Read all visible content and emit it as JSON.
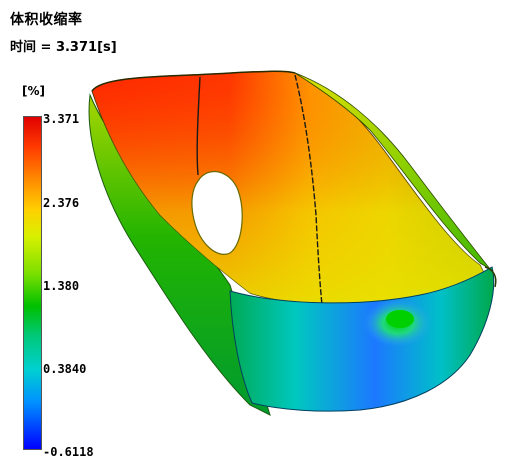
{
  "title": "体积收缩率",
  "time_label": "时间 = 3.371[s]",
  "legend": {
    "unit": "[%]",
    "ticks": [
      "3.371",
      "2.376",
      "1.380",
      "0.3840",
      "-0.6118"
    ],
    "colors": {
      "max": "#e00000",
      "upper": "#ffd000",
      "mid": "#00c000",
      "lower": "#00d0d0",
      "min": "#0000ff"
    }
  },
  "model": {
    "icon": "shrinkage-contour-part"
  }
}
